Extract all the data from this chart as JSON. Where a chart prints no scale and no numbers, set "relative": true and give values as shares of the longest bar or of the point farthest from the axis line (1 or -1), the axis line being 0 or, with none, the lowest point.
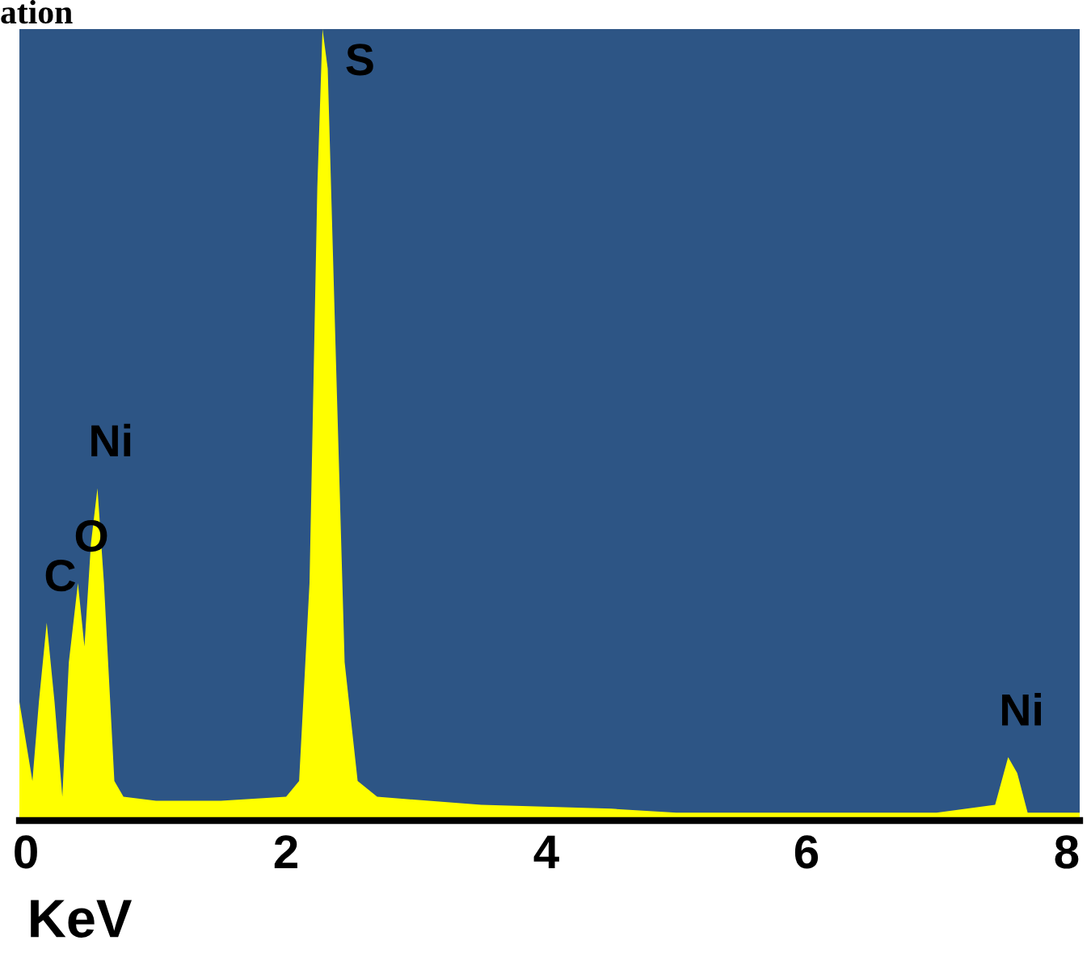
{
  "chart_data": {
    "type": "area",
    "title": "ation",
    "xlabel": "KeV",
    "relative": true,
    "x": [
      -0.05,
      0.05,
      0.1,
      0.16,
      0.22,
      0.28,
      0.33,
      0.4,
      0.45,
      0.5,
      0.55,
      0.6,
      0.68,
      0.75,
      1.0,
      1.5,
      2.0,
      2.1,
      2.18,
      2.24,
      2.28,
      2.32,
      2.38,
      2.45,
      2.55,
      2.7,
      3.5,
      4.5,
      5.0,
      6.0,
      7.0,
      7.45,
      7.55,
      7.62,
      7.7,
      8.0,
      8.1
    ],
    "series": [
      {
        "color": "#ffff00",
        "values": [
          0.15,
          0.05,
          0.15,
          0.25,
          0.15,
          0.03,
          0.2,
          0.3,
          0.22,
          0.35,
          0.42,
          0.3,
          0.05,
          0.03,
          0.025,
          0.025,
          0.03,
          0.05,
          0.3,
          0.8,
          1.0,
          0.95,
          0.6,
          0.2,
          0.05,
          0.03,
          0.02,
          0.015,
          0.01,
          0.01,
          0.01,
          0.02,
          0.08,
          0.06,
          0.01,
          0.01,
          0.01
        ]
      }
    ],
    "xlim": [
      -0.05,
      8.1
    ],
    "xticks": [
      0,
      2,
      4,
      6,
      8
    ],
    "annotations": [
      {
        "text": "C",
        "x": 0.16,
        "y": 0.25
      },
      {
        "text": "O",
        "x": 0.4,
        "y": 0.3
      },
      {
        "text": "Ni",
        "x": 0.55,
        "y": 0.42
      },
      {
        "text": "S",
        "x": 2.28,
        "y": 1.0
      },
      {
        "text": "Ni",
        "x": 7.55,
        "y": 0.08
      }
    ],
    "grid": false,
    "legend": false
  }
}
